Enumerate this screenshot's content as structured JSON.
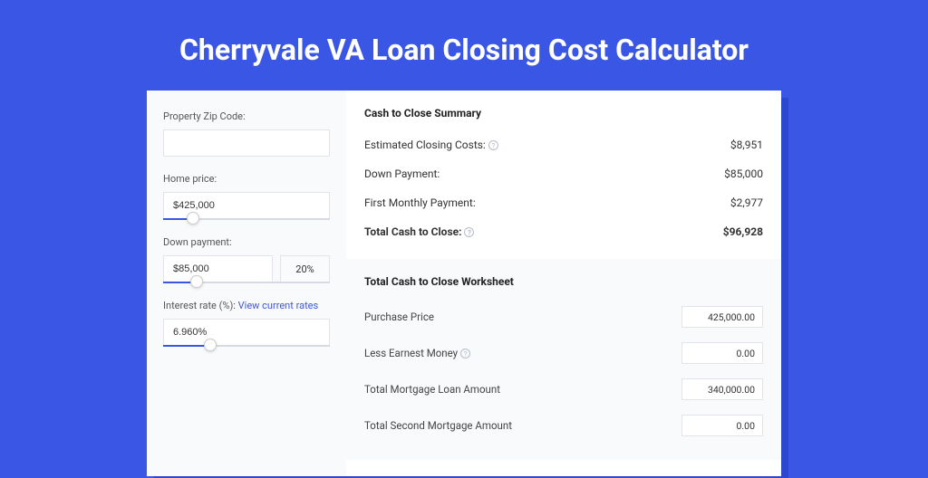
{
  "title": "Cherryvale VA Loan Closing Cost Calculator",
  "form": {
    "zip_label": "Property Zip Code:",
    "zip_value": "",
    "home_price_label": "Home price:",
    "home_price_value": "$425,000",
    "home_price_slider_pct": 18,
    "down_payment_label": "Down payment:",
    "down_payment_value": "$85,000",
    "down_payment_pct": "20%",
    "down_payment_slider_pct": 20,
    "interest_label": "Interest rate (%): ",
    "interest_link": "View current rates",
    "interest_value": "6.960%",
    "interest_slider_pct": 28
  },
  "summary": {
    "title": "Cash to Close Summary",
    "rows": [
      {
        "label": "Estimated Closing Costs:",
        "help": true,
        "value": "$8,951",
        "bold": false
      },
      {
        "label": "Down Payment:",
        "help": false,
        "value": "$85,000",
        "bold": false
      },
      {
        "label": "First Monthly Payment:",
        "help": false,
        "value": "$2,977",
        "bold": false
      },
      {
        "label": "Total Cash to Close:",
        "help": true,
        "value": "$96,928",
        "bold": true
      }
    ]
  },
  "worksheet": {
    "title": "Total Cash to Close Worksheet",
    "rows": [
      {
        "label": "Purchase Price",
        "help": false,
        "value": "425,000.00"
      },
      {
        "label": "Less Earnest Money",
        "help": true,
        "value": "0.00"
      },
      {
        "label": "Total Mortgage Loan Amount",
        "help": false,
        "value": "340,000.00"
      },
      {
        "label": "Total Second Mortgage Amount",
        "help": false,
        "value": "0.00"
      }
    ]
  },
  "colors": {
    "page_bg": "#3a56e4",
    "shadow": "#2c48cf",
    "accent": "#3a56e4",
    "panel_bg": "#f9fafc"
  }
}
